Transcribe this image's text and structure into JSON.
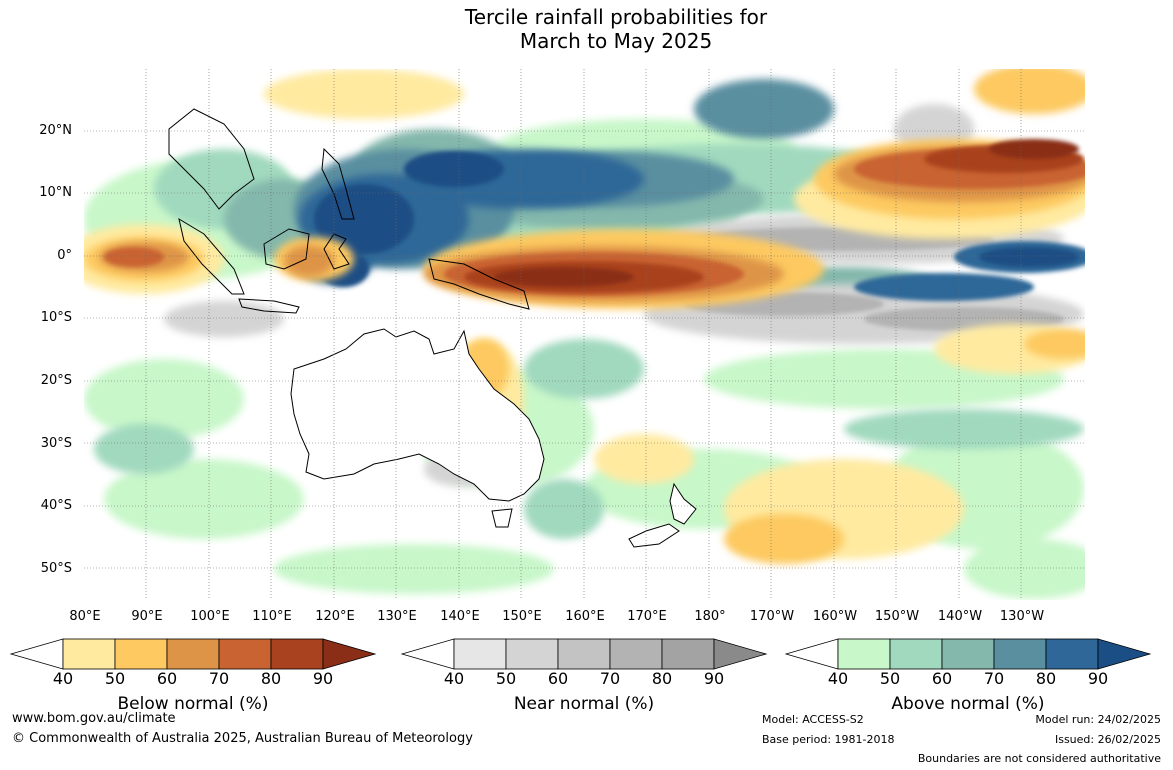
{
  "title": {
    "line1": "Tercile rainfall probabilities for",
    "line2": "March to May 2025"
  },
  "lat_labels": [
    "20°N",
    "10°N",
    "0°",
    "10°S",
    "20°S",
    "30°S",
    "40°S",
    "50°S"
  ],
  "lon_labels": [
    "80°E",
    "90°E",
    "100°E",
    "110°E",
    "120°E",
    "130°E",
    "140°E",
    "150°E",
    "160°E",
    "170°E",
    "180°",
    "170°W",
    "160°W",
    "150°W",
    "140°W",
    "130°W"
  ],
  "legends": [
    {
      "label": "Below normal (%)",
      "ticks": [
        "40",
        "50",
        "60",
        "70",
        "80",
        "90"
      ],
      "colors": [
        "#ffffff",
        "#ffeaa0",
        "#fdc960",
        "#de9446",
        "#c96332",
        "#a9421f",
        "#8a2e17"
      ]
    },
    {
      "label": "Near normal (%)",
      "ticks": [
        "40",
        "50",
        "60",
        "70",
        "80",
        "90"
      ],
      "colors": [
        "#ffffff",
        "#e6e6e6",
        "#d4d4d4",
        "#c3c3c3",
        "#b3b3b3",
        "#a3a3a3",
        "#8a8a8a"
      ]
    },
    {
      "label": "Above normal (%)",
      "ticks": [
        "40",
        "50",
        "60",
        "70",
        "80",
        "90"
      ],
      "colors": [
        "#ffffff",
        "#c8f7c9",
        "#a0d9be",
        "#84b8ac",
        "#5a8fa0",
        "#2f6798",
        "#1a4e84"
      ]
    }
  ],
  "footer": {
    "website": "www.bom.gov.au/climate",
    "copyright": "© Commonwealth of Australia 2025, Australian Bureau of Meteorology",
    "model": "Model: ACCESS-S2",
    "base_period": "Base period: 1981-2018",
    "model_run": "Model run: 24/02/2025",
    "issued": "Issued: 26/02/2025",
    "disclaimer": "Boundaries are not considered authoritative"
  }
}
